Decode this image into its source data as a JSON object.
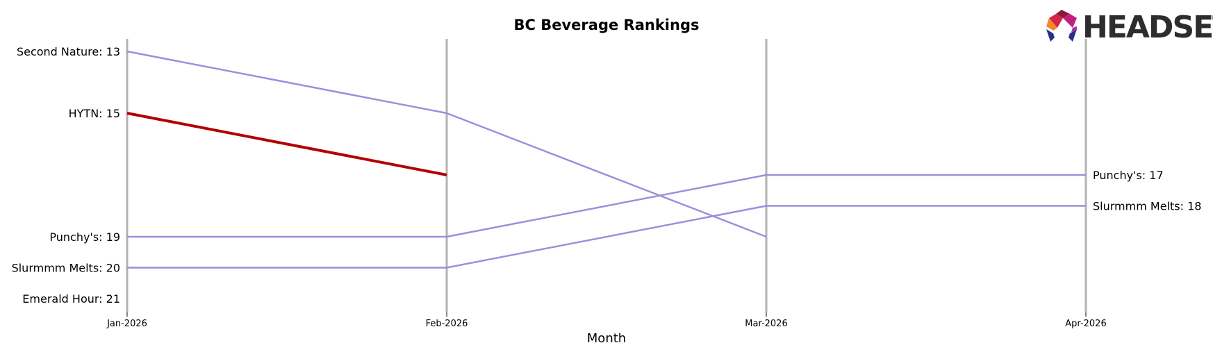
{
  "chart_data": {
    "type": "line",
    "title": "BC Beverage Rankings",
    "xlabel": "Month",
    "ylabel": "",
    "categories": [
      "Jan-2026",
      "Feb-2026",
      "Mar-2026",
      "Apr-2026"
    ],
    "ylim": [
      12,
      21
    ],
    "y_inverted": true,
    "grid": false,
    "highlight_color": "#b30000",
    "series_color": "#9b8fdc",
    "series": [
      {
        "name": "Second Nature",
        "values": [
          13,
          15,
          19,
          null
        ],
        "highlight": false
      },
      {
        "name": "HYTN",
        "values": [
          15,
          17,
          null,
          null
        ],
        "highlight": true
      },
      {
        "name": "Punchy's",
        "values": [
          19,
          19,
          17,
          17
        ],
        "highlight": false
      },
      {
        "name": "Slurmmm Melts",
        "values": [
          20,
          20,
          18,
          18
        ],
        "highlight": false
      },
      {
        "name": "Emerald Hour",
        "values": [
          21,
          null,
          null,
          null
        ],
        "highlight": false
      }
    ],
    "left_labels": [
      {
        "text": "Second Nature: 13",
        "rank": 13,
        "highlight": false
      },
      {
        "text": "HYTN: 15",
        "rank": 15,
        "highlight": true
      },
      {
        "text": "Punchy's: 19",
        "rank": 19,
        "highlight": false
      },
      {
        "text": "Slurmmm Melts: 20",
        "rank": 20,
        "highlight": false
      },
      {
        "text": "Emerald Hour: 21",
        "rank": 21,
        "highlight": false
      }
    ],
    "right_labels": [
      {
        "text": "Punchy's: 17",
        "rank": 17
      },
      {
        "text": "Slurmmm Melts: 18",
        "rank": 18
      }
    ]
  },
  "logo": {
    "text": "HEADSET",
    "icon": "headset-logo-icon"
  }
}
